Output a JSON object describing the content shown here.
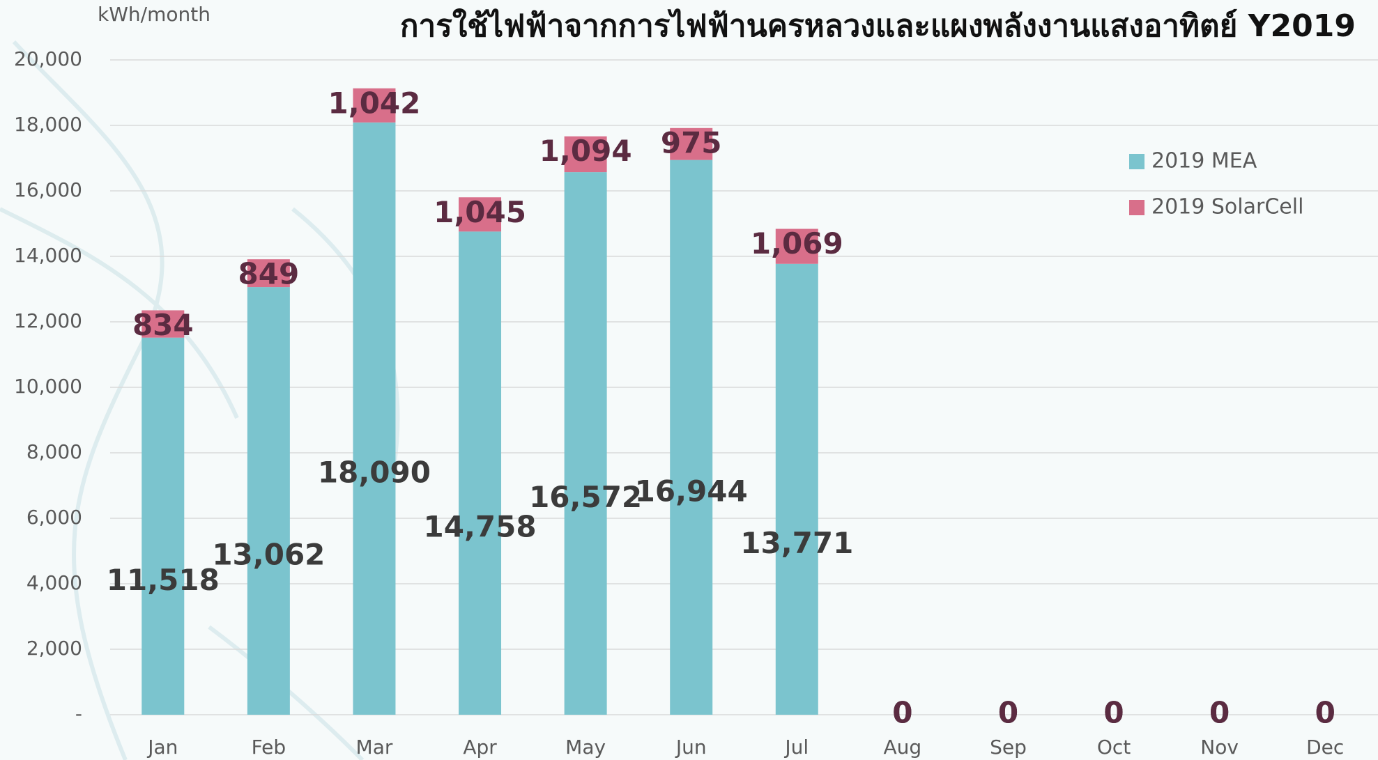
{
  "chart_data": {
    "type": "stacked_bar",
    "title": "การใช้ไฟฟ้าจากการไฟฟ้านครหลวงและแผงพลังงานแสงอาทิตย์  Y2019",
    "y_axis_label": "kWh/month",
    "categories": [
      "Jan",
      "Feb",
      "Mar",
      "Apr",
      "May",
      "Jun",
      "Jul",
      "Aug",
      "Sep",
      "Oct",
      "Nov",
      "Dec"
    ],
    "series": [
      {
        "name": "2019 MEA",
        "color": "#7bc4ce",
        "values": [
          11518,
          13062,
          18090,
          14758,
          16572,
          16944,
          13771,
          0,
          0,
          0,
          0,
          0
        ],
        "value_labels": [
          "11,518",
          "13,062",
          "18,090",
          "14,758",
          "16,572",
          "16,944",
          "13,771",
          "0",
          "0",
          "0",
          "0",
          "0"
        ]
      },
      {
        "name": "2019 SolarCell",
        "color": "#d86f8a",
        "values": [
          834,
          849,
          1042,
          1045,
          1094,
          975,
          1069,
          0,
          0,
          0,
          0,
          0
        ],
        "value_labels": [
          "834",
          "849",
          "1,042",
          "1,045",
          "1,094",
          "975",
          "1,069",
          "0",
          "0",
          "0",
          "0",
          "0"
        ]
      }
    ],
    "ylim": [
      0,
      20000
    ],
    "yticks": [
      {
        "value": 0,
        "label": "-"
      },
      {
        "value": 2000,
        "label": "2,000"
      },
      {
        "value": 4000,
        "label": "4,000"
      },
      {
        "value": 6000,
        "label": "6,000"
      },
      {
        "value": 8000,
        "label": "8,000"
      },
      {
        "value": 10000,
        "label": "10,000"
      },
      {
        "value": 12000,
        "label": "12,000"
      },
      {
        "value": 14000,
        "label": "14,000"
      },
      {
        "value": 16000,
        "label": "16,000"
      },
      {
        "value": 18000,
        "label": "18,000"
      },
      {
        "value": 20000,
        "label": "20,000"
      }
    ],
    "grid": true,
    "legend": "right"
  }
}
